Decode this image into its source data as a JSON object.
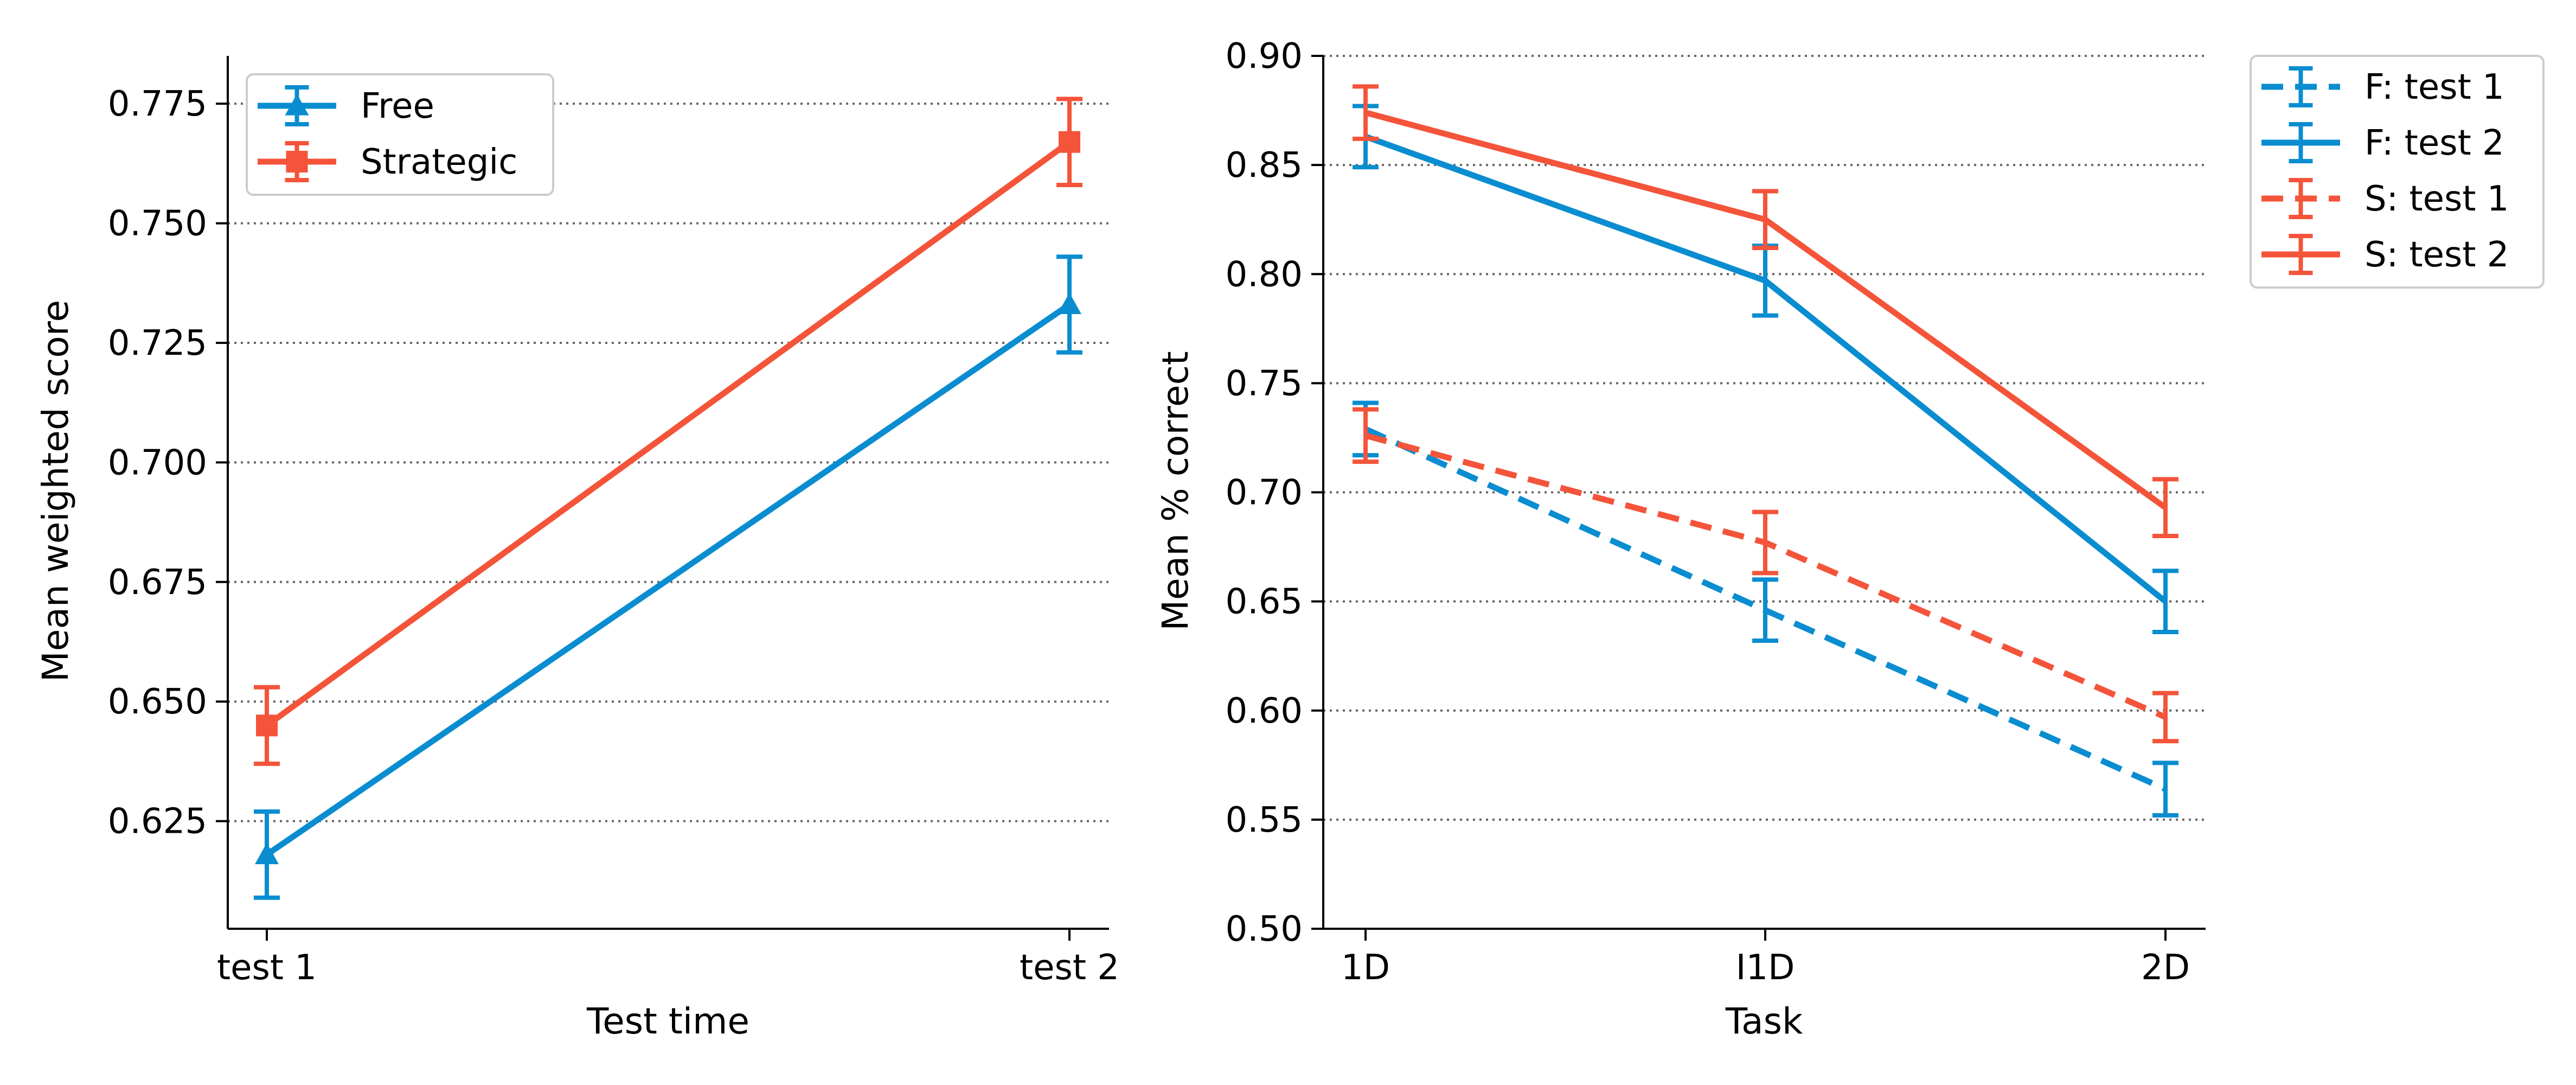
{
  "colors": {
    "free": "#0a8dd0",
    "strategic": "#f4543a",
    "grid": "#666666",
    "axis": "#000000"
  },
  "chart_data": [
    {
      "type": "line",
      "title": "",
      "xlabel": "Test time",
      "ylabel": "Mean weighted score",
      "categories": [
        "test 1",
        "test 2"
      ],
      "ylim": [
        0.6025,
        0.785
      ],
      "yticks": [
        0.625,
        0.65,
        0.675,
        0.7,
        0.725,
        0.75,
        0.775
      ],
      "ytick_labels": [
        "0.625",
        "0.650",
        "0.675",
        "0.700",
        "0.725",
        "0.750",
        "0.775"
      ],
      "grid": "horizontal dotted",
      "legend_position": "top-left",
      "series": [
        {
          "name": "Free",
          "color": "#0a8dd0",
          "marker": "triangle",
          "dash": "solid",
          "values": [
            0.618,
            0.733
          ],
          "err": [
            0.009,
            0.01
          ]
        },
        {
          "name": "Strategic",
          "color": "#f4543a",
          "marker": "square",
          "dash": "solid",
          "values": [
            0.645,
            0.767
          ],
          "err": [
            0.008,
            0.009
          ]
        }
      ]
    },
    {
      "type": "line",
      "title": "",
      "xlabel": "Task",
      "ylabel": "Mean % correct",
      "categories": [
        "1D",
        "I1D",
        "2D"
      ],
      "ylim": [
        0.5,
        0.9
      ],
      "yticks": [
        0.5,
        0.55,
        0.6,
        0.65,
        0.7,
        0.75,
        0.8,
        0.85,
        0.9
      ],
      "ytick_labels": [
        "0.50",
        "0.55",
        "0.60",
        "0.65",
        "0.70",
        "0.75",
        "0.80",
        "0.85",
        "0.90"
      ],
      "grid": "horizontal dotted",
      "legend_position": "outside top-right",
      "series": [
        {
          "name": "F: test 1",
          "color": "#0a8dd0",
          "dash": "dashed",
          "values": [
            0.729,
            0.646,
            0.564
          ],
          "err": [
            0.012,
            0.014,
            0.012
          ]
        },
        {
          "name": "F: test 2",
          "color": "#0a8dd0",
          "dash": "solid",
          "values": [
            0.863,
            0.797,
            0.65
          ],
          "err": [
            0.014,
            0.016,
            0.014
          ]
        },
        {
          "name": "S: test 1",
          "color": "#f4543a",
          "dash": "dashed",
          "values": [
            0.726,
            0.677,
            0.597
          ],
          "err": [
            0.012,
            0.014,
            0.011
          ]
        },
        {
          "name": "S: test 2",
          "color": "#f4543a",
          "dash": "solid",
          "values": [
            0.874,
            0.825,
            0.693
          ],
          "err": [
            0.012,
            0.013,
            0.013
          ]
        }
      ]
    }
  ]
}
